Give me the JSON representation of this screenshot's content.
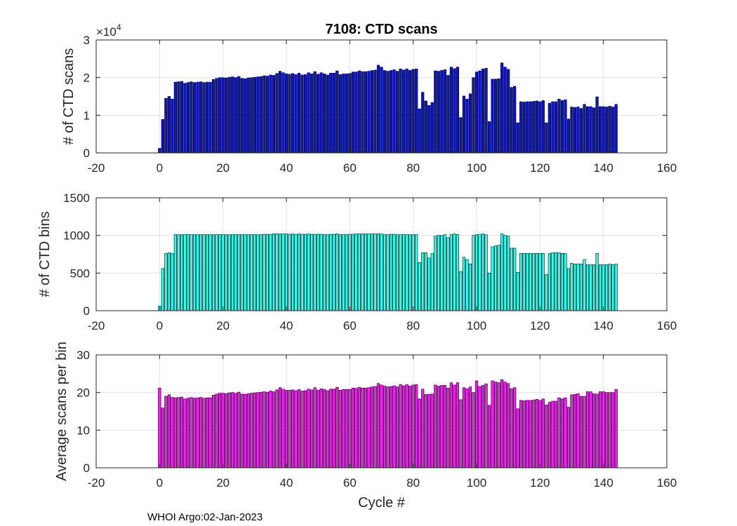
{
  "footer_text": "WHOI Argo:02-Jan-2023",
  "colors": {
    "panel1": "#0a14c8",
    "panel2": "#33ffee",
    "panel3": "#ee22ee",
    "grid": "#e3e3e3",
    "axis": "#262626"
  },
  "chart_data": [
    {
      "type": "bar",
      "title": "7108: CTD scans",
      "ylabel": "# of CTD scans",
      "xlabel": "",
      "xlim": [
        -20,
        160
      ],
      "ylim": [
        0,
        30000
      ],
      "xticks": [
        "-20",
        "0",
        "20",
        "40",
        "60",
        "80",
        "100",
        "120",
        "140",
        "160"
      ],
      "yticks": [
        "0",
        "1",
        "2",
        "3"
      ],
      "y_exponent_base": "×10",
      "y_exponent": "4",
      "grid": true,
      "x": [
        0,
        1,
        2,
        3,
        4,
        5,
        6,
        7,
        8,
        9,
        10,
        11,
        12,
        13,
        14,
        15,
        16,
        17,
        18,
        19,
        20,
        21,
        22,
        23,
        24,
        25,
        26,
        27,
        28,
        29,
        30,
        31,
        32,
        33,
        34,
        35,
        36,
        37,
        38,
        39,
        40,
        41,
        42,
        43,
        44,
        45,
        46,
        47,
        48,
        49,
        50,
        51,
        52,
        53,
        54,
        55,
        56,
        57,
        58,
        59,
        60,
        61,
        62,
        63,
        64,
        65,
        66,
        67,
        68,
        69,
        70,
        71,
        72,
        73,
        74,
        75,
        76,
        77,
        78,
        79,
        80,
        81,
        82,
        83,
        84,
        85,
        86,
        87,
        88,
        89,
        90,
        91,
        92,
        93,
        94,
        95,
        96,
        97,
        98,
        99,
        100,
        101,
        102,
        103,
        104,
        105,
        106,
        107,
        108,
        109,
        110,
        111,
        112,
        113,
        114,
        115,
        116,
        117,
        118,
        119,
        120,
        121,
        122,
        123,
        124,
        125,
        126,
        127,
        128,
        129,
        130,
        131,
        132,
        133,
        134,
        135,
        136,
        137,
        138,
        139,
        140,
        141,
        142,
        143,
        144
      ],
      "values": [
        1200,
        8900,
        14500,
        15000,
        14300,
        18800,
        18900,
        19000,
        18500,
        18700,
        18900,
        18700,
        18800,
        18900,
        18700,
        18800,
        18800,
        19500,
        19800,
        20000,
        20000,
        19900,
        20100,
        20200,
        20000,
        20300,
        19800,
        19700,
        19900,
        20000,
        20100,
        20200,
        20300,
        20500,
        20400,
        20700,
        20600,
        21100,
        21700,
        21300,
        21000,
        20900,
        21100,
        20800,
        21200,
        20700,
        20800,
        21300,
        21000,
        21600,
        20900,
        21300,
        21000,
        20700,
        21200,
        21200,
        21800,
        20800,
        21000,
        21000,
        21100,
        21500,
        21500,
        21800,
        21600,
        21600,
        21700,
        21900,
        22000,
        23300,
        22800,
        21900,
        21700,
        21900,
        22100,
        21700,
        22300,
        22000,
        22300,
        21900,
        22200,
        22300,
        11700,
        16100,
        13800,
        12600,
        13400,
        21800,
        21700,
        21900,
        22100,
        20600,
        22800,
        22400,
        22800,
        9400,
        15100,
        14300,
        15700,
        20000,
        21500,
        21800,
        22300,
        22500,
        8300,
        19600,
        19600,
        19700,
        23900,
        22800,
        22200,
        17400,
        17700,
        8000,
        13600,
        13500,
        13600,
        13600,
        13700,
        13800,
        13600,
        13900,
        8000,
        13200,
        13600,
        13600,
        14300,
        13900,
        14100,
        9000,
        12200,
        12100,
        12200,
        11800,
        12900,
        12300,
        12300,
        12000,
        14900,
        12300,
        12300,
        12200,
        12400,
        12200,
        12900
      ]
    },
    {
      "type": "bar",
      "title": "",
      "ylabel": "# of CTD bins",
      "xlabel": "",
      "xlim": [
        -20,
        160
      ],
      "ylim": [
        0,
        1500
      ],
      "xticks": [
        "-20",
        "0",
        "20",
        "40",
        "60",
        "80",
        "100",
        "120",
        "140",
        "160"
      ],
      "yticks": [
        "0",
        "500",
        "1000",
        "1500"
      ],
      "grid": true,
      "x": [
        0,
        1,
        2,
        3,
        4,
        5,
        6,
        7,
        8,
        9,
        10,
        11,
        12,
        13,
        14,
        15,
        16,
        17,
        18,
        19,
        20,
        21,
        22,
        23,
        24,
        25,
        26,
        27,
        28,
        29,
        30,
        31,
        32,
        33,
        34,
        35,
        36,
        37,
        38,
        39,
        40,
        41,
        42,
        43,
        44,
        45,
        46,
        47,
        48,
        49,
        50,
        51,
        52,
        53,
        54,
        55,
        56,
        57,
        58,
        59,
        60,
        61,
        62,
        63,
        64,
        65,
        66,
        67,
        68,
        69,
        70,
        71,
        72,
        73,
        74,
        75,
        76,
        77,
        78,
        79,
        80,
        81,
        82,
        83,
        84,
        85,
        86,
        87,
        88,
        89,
        90,
        91,
        92,
        93,
        94,
        95,
        96,
        97,
        98,
        99,
        100,
        101,
        102,
        103,
        104,
        105,
        106,
        107,
        108,
        109,
        110,
        111,
        112,
        113,
        114,
        115,
        116,
        117,
        118,
        119,
        120,
        121,
        122,
        123,
        124,
        125,
        126,
        127,
        128,
        129,
        130,
        131,
        132,
        133,
        134,
        135,
        136,
        137,
        138,
        139,
        140,
        141,
        142,
        143,
        144
      ],
      "values": [
        60,
        560,
        760,
        770,
        760,
        1010,
        1010,
        1010,
        1010,
        1010,
        1010,
        1010,
        1010,
        1010,
        1010,
        1010,
        1010,
        1010,
        1010,
        1010,
        1010,
        1010,
        1010,
        1010,
        1010,
        1010,
        1010,
        1010,
        1010,
        1010,
        1010,
        1010,
        1010,
        1015,
        1015,
        1015,
        1020,
        1020,
        1020,
        1020,
        1020,
        1015,
        1020,
        1015,
        1020,
        1015,
        1015,
        1020,
        1015,
        1015,
        1015,
        1015,
        1010,
        1010,
        1015,
        1015,
        1020,
        1010,
        1010,
        1010,
        1015,
        1015,
        1020,
        1020,
        1020,
        1020,
        1020,
        1020,
        1020,
        1020,
        1020,
        1010,
        1010,
        1015,
        1015,
        1010,
        1010,
        1010,
        1010,
        1010,
        1010,
        1010,
        640,
        770,
        770,
        700,
        760,
        990,
        1000,
        1000,
        1010,
        970,
        1010,
        1020,
        1010,
        520,
        710,
        680,
        620,
        1000,
        1010,
        1010,
        1020,
        1010,
        500,
        850,
        860,
        870,
        1020,
        1000,
        990,
        830,
        830,
        510,
        760,
        760,
        760,
        760,
        760,
        760,
        760,
        760,
        480,
        760,
        770,
        770,
        770,
        760,
        760,
        560,
        630,
        620,
        620,
        620,
        680,
        610,
        610,
        610,
        760,
        610,
        610,
        610,
        620,
        610,
        620
      ]
    },
    {
      "type": "bar",
      "title": "",
      "ylabel": "Average scans per bin",
      "xlabel": "Cycle #",
      "xlim": [
        -20,
        160
      ],
      "ylim": [
        0,
        30
      ],
      "xticks": [
        "-20",
        "0",
        "20",
        "40",
        "60",
        "80",
        "100",
        "120",
        "140",
        "160"
      ],
      "yticks": [
        "0",
        "10",
        "20",
        "30"
      ],
      "grid": true,
      "x": [
        0,
        1,
        2,
        3,
        4,
        5,
        6,
        7,
        8,
        9,
        10,
        11,
        12,
        13,
        14,
        15,
        16,
        17,
        18,
        19,
        20,
        21,
        22,
        23,
        24,
        25,
        26,
        27,
        28,
        29,
        30,
        31,
        32,
        33,
        34,
        35,
        36,
        37,
        38,
        39,
        40,
        41,
        42,
        43,
        44,
        45,
        46,
        47,
        48,
        49,
        50,
        51,
        52,
        53,
        54,
        55,
        56,
        57,
        58,
        59,
        60,
        61,
        62,
        63,
        64,
        65,
        66,
        67,
        68,
        69,
        70,
        71,
        72,
        73,
        74,
        75,
        76,
        77,
        78,
        79,
        80,
        81,
        82,
        83,
        84,
        85,
        86,
        87,
        88,
        89,
        90,
        91,
        92,
        93,
        94,
        95,
        96,
        97,
        98,
        99,
        100,
        101,
        102,
        103,
        104,
        105,
        106,
        107,
        108,
        109,
        110,
        111,
        112,
        113,
        114,
        115,
        116,
        117,
        118,
        119,
        120,
        121,
        122,
        123,
        124,
        125,
        126,
        127,
        128,
        129,
        130,
        131,
        132,
        133,
        134,
        135,
        136,
        137,
        138,
        139,
        140,
        141,
        142,
        143,
        144
      ],
      "values": [
        21.2,
        15.9,
        19.0,
        19.4,
        18.7,
        18.6,
        18.7,
        18.8,
        18.3,
        18.5,
        18.7,
        18.5,
        18.6,
        18.7,
        18.5,
        18.6,
        18.6,
        19.3,
        19.6,
        19.8,
        19.8,
        19.7,
        19.9,
        20.0,
        19.8,
        20.1,
        19.6,
        19.5,
        19.7,
        19.8,
        19.9,
        20.0,
        20.1,
        20.2,
        20.1,
        20.4,
        20.2,
        20.7,
        21.3,
        20.9,
        20.6,
        20.6,
        20.7,
        20.5,
        20.8,
        20.4,
        20.5,
        20.9,
        20.7,
        21.3,
        20.6,
        21.0,
        20.8,
        20.5,
        20.9,
        20.9,
        21.4,
        20.6,
        20.8,
        20.8,
        20.8,
        21.2,
        21.1,
        21.4,
        21.2,
        21.2,
        21.3,
        21.5,
        21.6,
        22.4,
        22.0,
        21.7,
        21.5,
        21.6,
        21.8,
        21.5,
        22.1,
        21.8,
        22.1,
        21.7,
        22.0,
        22.1,
        18.3,
        20.9,
        19.5,
        19.5,
        19.6,
        22.0,
        21.7,
        21.9,
        21.9,
        21.2,
        22.6,
        22.0,
        22.6,
        18.1,
        21.3,
        21.0,
        21.5,
        20.0,
        23.1,
        21.6,
        21.9,
        22.3,
        16.6,
        23.1,
        22.8,
        22.6,
        23.4,
        22.8,
        22.4,
        21.0,
        21.3,
        15.7,
        17.9,
        17.8,
        17.9,
        17.9,
        18.0,
        18.2,
        17.9,
        18.3,
        16.7,
        17.4,
        17.7,
        17.7,
        18.6,
        18.3,
        18.6,
        16.1,
        19.4,
        19.5,
        19.7,
        19.0,
        19.0,
        20.2,
        20.2,
        19.7,
        19.6,
        20.2,
        20.2,
        20.0,
        20.0,
        20.0,
        20.8
      ]
    }
  ]
}
